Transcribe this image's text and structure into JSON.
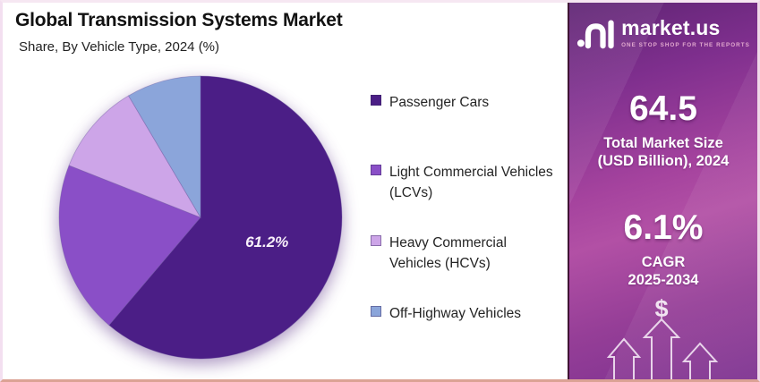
{
  "header": {
    "title": "Global Transmission Systems Market",
    "subtitle": "Share, By Vehicle Type, 2024 (%)"
  },
  "chart_data": {
    "type": "pie",
    "title": "Global Transmission Systems Market",
    "subtitle": "Share, By Vehicle Type, 2024 (%)",
    "unit": "%",
    "categories": [
      "Passenger Cars",
      "Light Commercial Vehicles (LCVs)",
      "Heavy Commercial Vehicles (HCVs)",
      "Off-Highway Vehicles"
    ],
    "values": [
      61.2,
      19.8,
      10.5,
      8.5
    ],
    "colors": [
      "#4b1e86",
      "#8a4fc7",
      "#cda5e8",
      "#8ba5da"
    ],
    "slice_labels": [
      "61.2%",
      "",
      "",
      ""
    ],
    "start_angle_deg": 0,
    "direction": "clockwise",
    "legend_position": "right"
  },
  "legend": {
    "items": [
      {
        "label": "Passenger Cars",
        "color": "#4b1e86"
      },
      {
        "label": "Light Commercial Vehicles\n(LCVs)",
        "color": "#8a4fc7"
      },
      {
        "label": "Heavy Commercial\nVehicles (HCVs)",
        "color": "#cda5e8"
      },
      {
        "label": "Off-Highway Vehicles",
        "color": "#8ba5da"
      }
    ]
  },
  "sidebar": {
    "brand": {
      "name": "market.us",
      "tagline": "ONE STOP SHOP FOR THE REPORTS"
    },
    "market_size": {
      "value": "64.5",
      "label": "Total Market Size\n(USD Billion), 2024"
    },
    "cagr": {
      "value": "6.1%",
      "label": "CAGR\n2025-2034"
    },
    "dollar_symbol": "$",
    "colors": {
      "background_top": "#5e2473",
      "background_mid": "#b250a5",
      "background_bottom": "#7d3190",
      "tagline": "#e2a9cf"
    }
  }
}
